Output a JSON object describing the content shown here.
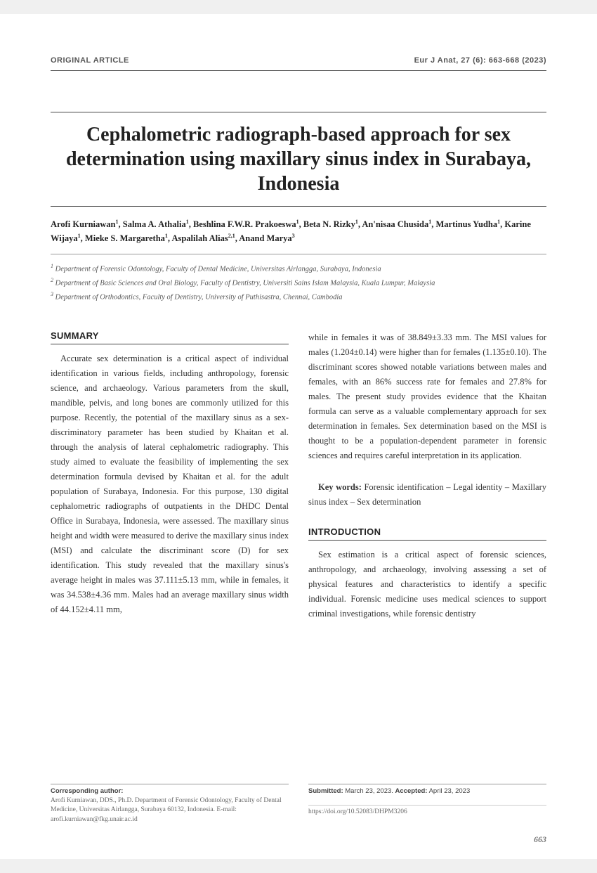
{
  "header": {
    "article_type": "ORIGINAL ARTICLE",
    "citation": "Eur J Anat, 27 (6): 663-668 (2023)"
  },
  "title": "Cephalometric radiograph-based approach for sex determination using maxillary sinus index in Surabaya, Indonesia",
  "authors_html": "Arofi Kurniawan<sup>1</sup>, Salma A. Athalia<sup>1</sup>, Beshlina F.W.R. Prakoeswa<sup>1</sup>, Beta N. Rizky<sup>1</sup>, An'nisaa Chusida<sup>1</sup>, Martinus Yudha<sup>1</sup>, Karine Wijaya<sup>1</sup>, Mieke S. Margaretha<sup>1</sup>, Aspalilah Alias<sup>2,1</sup>, Anand Marya<sup>3</sup>",
  "affiliations": [
    "<sup>1</sup> Department of Forensic Odontology, Faculty of Dental Medicine, Universitas Airlangga, Surabaya, Indonesia",
    "<sup>2</sup> Department of Basic Sciences and Oral Biology, Faculty of Dentistry, Universiti Sains Islam Malaysia, Kuala Lumpur, Malaysia",
    "<sup>3</sup> Department of Orthodontics, Faculty of Dentistry, University of Puthisastra, Chennai, Cambodia"
  ],
  "summary": {
    "heading": "SUMMARY",
    "col1": "Accurate sex determination is a critical aspect of individual identification in various fields, including anthropology, forensic science, and archaeology. Various parameters from the skull, mandible, pelvis, and long bones are commonly utilized for this purpose. Recently, the potential of the maxillary sinus as a sex-discriminatory parameter has been studied by Khaitan et al. through the analysis of lateral cephalometric radiography. This study aimed to evaluate the feasibility of implementing the sex determination formula devised by Khaitan et al. for the adult population of Surabaya, Indonesia. For this purpose, 130 digital cephalometric radiographs of outpatients in the DHDC Dental Office in Surabaya, Indonesia, were assessed. The maxillary sinus height and width were measured to derive the maxillary sinus index (MSI) and calculate the discriminant score (D) for sex identification. This study revealed that the maxillary sinus's average height in males was 37.111±5.13 mm, while in females, it was 34.538±4.36 mm. Males had an average maxillary sinus width of 44.152±4.11 mm,",
    "col2": "while in females it was of 38.849±3.33 mm. The MSI values for males (1.204±0.14) were higher than for females (1.135±0.10). The discriminant scores showed notable variations between males and females, with an 86% success rate for females and 27.8% for males. The present study provides evidence that the Khaitan formula can serve as a valuable complementary approach for sex determination in females. Sex determination based on the MSI is thought to be a population-dependent parameter in forensic sciences and requires careful interpretation in its application."
  },
  "keywords": {
    "label": "Key words:",
    "text": " Forensic identification – Legal identity – Maxillary sinus index – Sex determination"
  },
  "introduction": {
    "heading": "INTRODUCTION",
    "text": "Sex estimation is a critical aspect of forensic sciences, anthropology, and archaeology, involving assessing a set of physical features and characteristics to identify a specific individual. Forensic medicine uses medical sciences to support criminal investigations, while forensic dentistry"
  },
  "footer": {
    "corresponding_label": "Corresponding author:",
    "corresponding_text": "Arofi Kurniawan, DDS., Ph.D. Department of Forensic Odontology, Faculty of Dental Medicine, Universitas Airlangga, Surabaya 60132, Indonesia. E-mail: arofi.kurniawan@fkg.unair.ac.id",
    "submitted_label": "Submitted:",
    "submitted_date": " March 23, 2023. ",
    "accepted_label": "Accepted:",
    "accepted_date": " April 23, 2023",
    "doi": "https://doi.org/10.52083/DHPM3206"
  },
  "page_number": "663"
}
